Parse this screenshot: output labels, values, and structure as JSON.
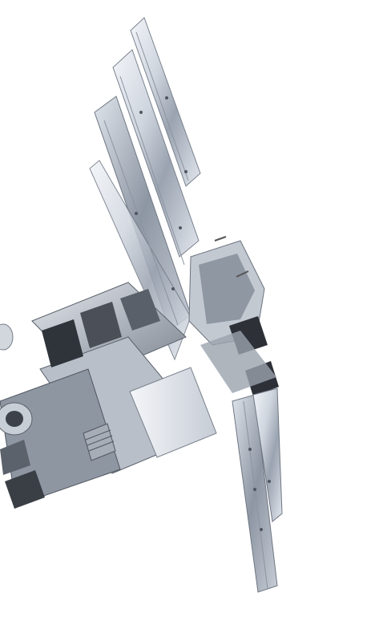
{
  "image": {
    "subject": "satellite-render",
    "background_color": "#ffffff",
    "colors": {
      "panel_light": "#e8ecf2",
      "panel_mid": "#b7bfcb",
      "panel_dark": "#6d7582",
      "body_metal": "#c9ced6",
      "body_dark": "#2e3238",
      "shadow": "#4a4f57"
    }
  }
}
